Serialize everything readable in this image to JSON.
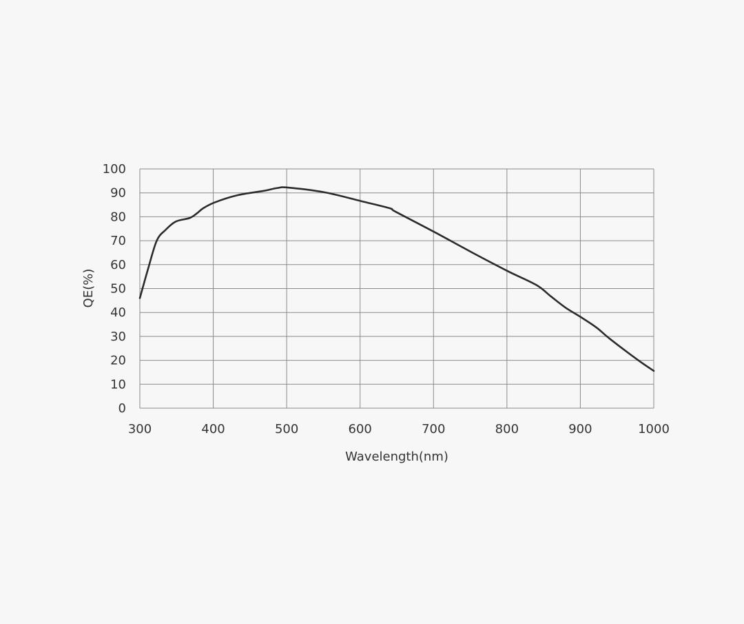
{
  "chart_data": {
    "type": "line",
    "title": "",
    "xlabel": "Wavelength(nm)",
    "ylabel": "QE(%)",
    "xlim": [
      300,
      1000
    ],
    "ylim": [
      0,
      100
    ],
    "xticks": [
      300,
      400,
      500,
      600,
      700,
      800,
      900,
      1000
    ],
    "yticks": [
      0,
      10,
      20,
      30,
      40,
      50,
      60,
      70,
      80,
      90,
      100
    ],
    "grid": true,
    "line_color": "#2b2b2b",
    "grid_color": "#8a8a8a",
    "series": [
      {
        "x": [
          300,
          311,
          323,
          335,
          349,
          368,
          378,
          386,
          402,
          433,
          468,
          487,
          502,
          552,
          602,
          640,
          649,
          702,
          750,
          801,
          840,
          860,
          880,
          901,
          922,
          941,
          979,
          1000
        ],
        "y": [
          46,
          58,
          70,
          74.5,
          78,
          79.5,
          81.5,
          83.5,
          86,
          89,
          90.8,
          92,
          92.2,
          90.2,
          86.5,
          83.6,
          82,
          73.5,
          65.5,
          57.3,
          51.5,
          46.7,
          42,
          38,
          33.7,
          28.8,
          20,
          15.6
        ]
      }
    ]
  }
}
